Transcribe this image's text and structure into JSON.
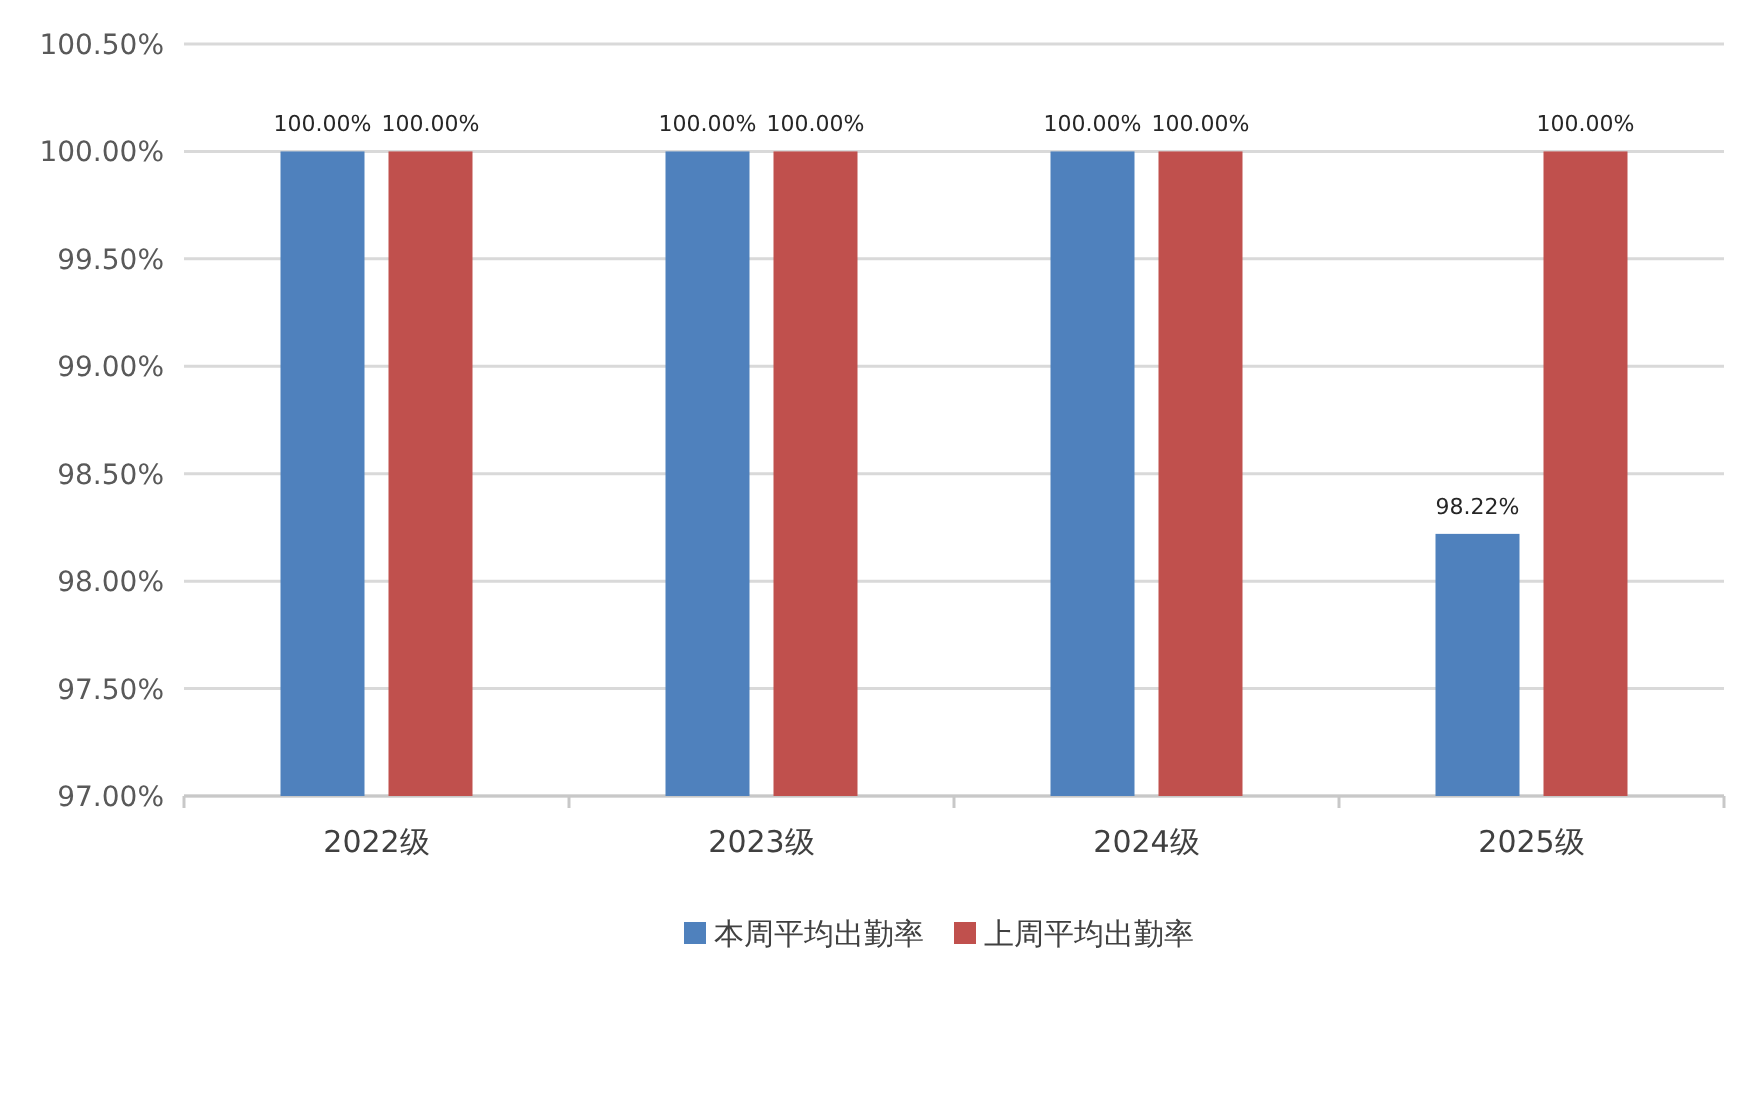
{
  "chart_data": {
    "type": "bar",
    "categories": [
      "2022级",
      "2023级",
      "2024级",
      "2025级"
    ],
    "series": [
      {
        "name": "本周平均出勤率",
        "color": "#4f81bd",
        "values": [
          100,
          100,
          100,
          98.22
        ],
        "value_labels": [
          "100.00%",
          "100.00%",
          "100.00%",
          "98.22%"
        ]
      },
      {
        "name": "上周平均出勤率",
        "color": "#c0504d",
        "values": [
          100,
          100,
          100,
          100
        ],
        "value_labels": [
          "100.00%",
          "100.00%",
          "100.00%",
          "100.00%"
        ]
      }
    ],
    "ylim": [
      97,
      100.5
    ],
    "yticks": [
      {
        "value": 97,
        "label": "97.00%"
      },
      {
        "value": 97.5,
        "label": "97.50%"
      },
      {
        "value": 98,
        "label": "98.00%"
      },
      {
        "value": 98.5,
        "label": "98.50%"
      },
      {
        "value": 99,
        "label": "99.00%"
      },
      {
        "value": 99.5,
        "label": "99.50%"
      },
      {
        "value": 100,
        "label": "100.00%"
      },
      {
        "value": 100.5,
        "label": "100.50%"
      }
    ],
    "grid": "y",
    "legend": "bottom"
  }
}
